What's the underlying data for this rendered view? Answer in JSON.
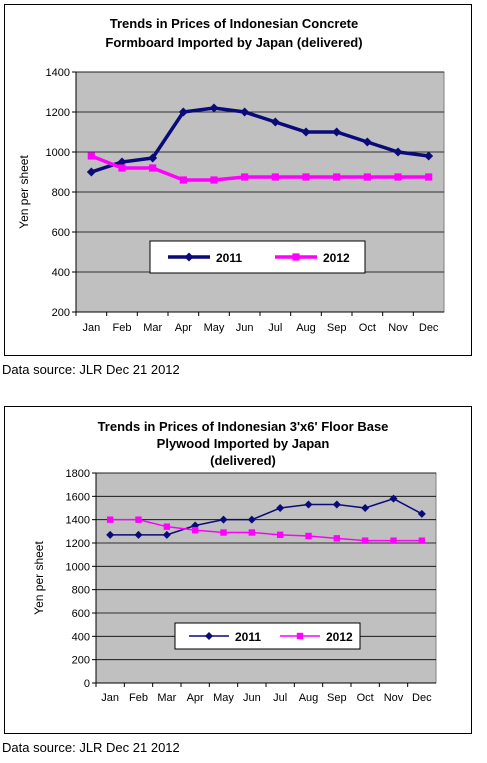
{
  "chart_data": [
    {
      "type": "line",
      "title": "Trends in Prices of Indonesian Concrete Formboard Imported by Japan (delivered)",
      "title_lines": [
        "Trends in Prices of Indonesian Concrete",
        "Formboard Imported by Japan (delivered)"
      ],
      "ylabel": "Yen per sheet",
      "ylim": [
        200,
        1400
      ],
      "yticks": [
        "200",
        "400",
        "600",
        "800",
        "1000",
        "1200",
        "1400"
      ],
      "categories": [
        "Jan",
        "Feb",
        "Mar",
        "Apr",
        "May",
        "Jun",
        "Jul",
        "Aug",
        "Sep",
        "Oct",
        "Nov",
        "Dec"
      ],
      "series": [
        {
          "name": "2011",
          "color": "#0a0a78",
          "marker": "diamond",
          "values": [
            900,
            950,
            970,
            1200,
            1220,
            1200,
            1150,
            1100,
            1100,
            1050,
            1000,
            980
          ]
        },
        {
          "name": "2012",
          "color": "#ff00ff",
          "marker": "square",
          "values": [
            980,
            920,
            920,
            860,
            860,
            875,
            875,
            875,
            875,
            875,
            875,
            875
          ]
        }
      ],
      "legend": "inside-bottom",
      "grid": true,
      "plot_background": "#c0c0c0"
    },
    {
      "type": "line",
      "title": "Trends in Prices of Indonesian 3'x6' Floor Base Plywood Imported by Japan (delivered)",
      "title_lines": [
        "Trends in Prices of Indonesian 3'x6' Floor Base",
        "Plywood Imported by Japan",
        "(delivered)"
      ],
      "ylabel": "Yen per sheet",
      "ylim": [
        0,
        1800
      ],
      "yticks": [
        "0",
        "200",
        "400",
        "600",
        "800",
        "1000",
        "1200",
        "1400",
        "1600",
        "1800"
      ],
      "categories": [
        "Jan",
        "Feb",
        "Mar",
        "Apr",
        "May",
        "Jun",
        "Jul",
        "Aug",
        "Sep",
        "Oct",
        "Nov",
        "Dec"
      ],
      "series": [
        {
          "name": "2011",
          "color": "#0a0a78",
          "marker": "diamond",
          "values": [
            1270,
            1270,
            1270,
            1350,
            1400,
            1400,
            1500,
            1530,
            1530,
            1500,
            1580,
            1450
          ]
        },
        {
          "name": "2012",
          "color": "#ff00ff",
          "marker": "square",
          "values": [
            1400,
            1400,
            1340,
            1310,
            1290,
            1290,
            1270,
            1260,
            1240,
            1220,
            1220,
            1220
          ]
        }
      ],
      "legend": "inside-bottom",
      "grid": true,
      "plot_background": "#c0c0c0"
    }
  ],
  "sources": [
    "Data source: JLR Dec 21 2012",
    "Data source: JLR Dec 21 2012"
  ]
}
